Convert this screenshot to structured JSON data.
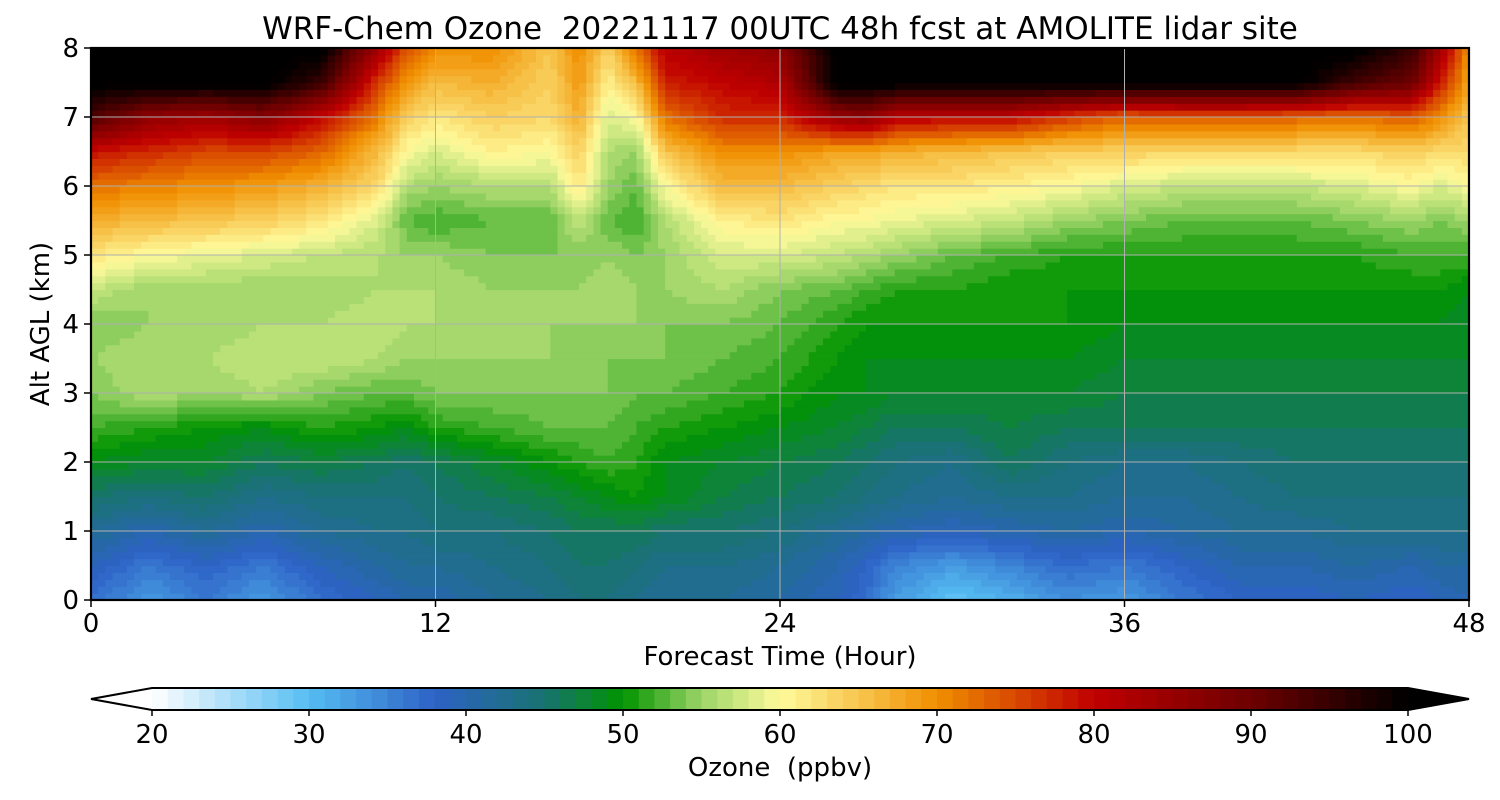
{
  "chart_data": {
    "type": "heatmap",
    "title": "WRF-Chem Ozone  20221117 00UTC 48h fcst at AMOLITE lidar site",
    "xlabel": "Forecast Time (Hour)",
    "ylabel": "Alt AGL (km)",
    "xlim": [
      0,
      48
    ],
    "ylim": [
      0,
      8
    ],
    "xticks": [
      0,
      12,
      24,
      36,
      48
    ],
    "yticks": [
      0,
      1,
      2,
      3,
      4,
      5,
      6,
      7,
      8
    ],
    "grid": true,
    "x": [
      0,
      2,
      4,
      6,
      8,
      10,
      11,
      12,
      14,
      16,
      17,
      18,
      19,
      20,
      22,
      24,
      26,
      27,
      28,
      30,
      32,
      34,
      36,
      38,
      40,
      42,
      44,
      46,
      47,
      48
    ],
    "y": [
      0,
      0.5,
      1,
      1.5,
      2,
      2.5,
      3,
      3.5,
      4,
      4.5,
      5,
      5.5,
      6,
      6.5,
      7,
      7.5,
      8
    ],
    "z": [
      [
        37,
        33,
        36,
        33,
        37,
        39,
        40,
        40,
        42,
        43,
        44,
        44,
        43,
        42,
        42,
        41,
        39,
        37,
        33,
        29,
        31,
        34,
        33,
        36,
        38,
        38,
        39,
        38,
        39,
        40
      ],
      [
        39,
        36,
        38,
        36,
        39,
        41,
        42,
        42,
        43,
        44,
        45,
        45,
        44,
        43,
        43,
        42,
        40,
        38,
        35,
        33,
        35,
        37,
        36,
        38,
        40,
        40,
        41,
        40,
        41,
        41
      ],
      [
        42,
        40,
        42,
        40,
        42,
        43,
        43,
        44,
        44,
        45,
        46,
        46,
        46,
        45,
        45,
        44,
        42,
        41,
        40,
        39,
        40,
        41,
        40,
        41,
        42,
        42,
        43,
        43,
        43,
        43
      ],
      [
        45,
        44,
        45,
        43,
        44,
        44,
        44,
        45,
        46,
        47,
        48,
        49,
        50,
        49,
        47,
        46,
        45,
        44,
        43,
        42,
        43,
        43,
        42,
        42,
        43,
        44,
        44,
        44,
        44,
        44
      ],
      [
        49,
        48,
        48,
        46,
        47,
        46,
        45,
        46,
        48,
        50,
        51,
        52,
        51,
        49,
        48,
        47,
        46,
        45,
        44,
        43,
        46,
        44,
        43,
        43,
        44,
        45,
        45,
        45,
        45,
        45
      ],
      [
        52,
        51,
        50,
        49,
        51,
        50,
        49,
        51,
        52,
        53,
        53,
        53,
        52,
        51,
        50,
        49,
        48,
        47,
        46,
        46,
        47,
        46,
        46,
        46,
        46,
        46,
        46,
        46,
        46,
        46
      ],
      [
        54,
        56,
        55,
        56,
        54,
        53,
        53,
        54,
        54,
        54,
        54,
        54,
        53,
        53,
        52,
        51,
        49,
        49,
        48,
        48,
        48,
        48,
        47,
        47,
        47,
        47,
        47,
        47,
        47,
        47
      ],
      [
        55,
        56,
        56,
        57,
        57,
        56,
        55,
        55,
        55,
        55,
        54,
        54,
        54,
        54,
        53,
        52,
        50,
        49,
        49,
        49,
        49,
        49,
        48,
        48,
        48,
        48,
        48,
        48,
        48,
        48
      ],
      [
        54,
        55,
        55,
        56,
        56,
        57,
        56,
        56,
        55,
        55,
        55,
        55,
        55,
        54,
        54,
        53,
        51,
        50,
        50,
        50,
        50,
        50,
        49,
        49,
        49,
        49,
        49,
        49,
        49,
        48
      ],
      [
        57,
        55,
        55,
        55,
        55,
        56,
        56,
        56,
        55,
        55,
        55,
        56,
        55,
        55,
        56,
        54,
        53,
        52,
        51,
        51,
        50,
        50,
        50,
        50,
        50,
        50,
        50,
        50,
        50,
        49
      ],
      [
        62,
        60,
        59,
        58,
        57,
        56,
        55,
        55,
        54,
        54,
        54,
        55,
        54,
        55,
        58,
        58,
        57,
        56,
        55,
        53,
        52,
        51,
        51,
        51,
        51,
        51,
        51,
        52,
        52,
        52
      ],
      [
        67,
        66,
        65,
        64,
        62,
        58,
        53,
        52,
        53,
        53,
        57,
        53,
        52,
        56,
        61,
        62,
        60,
        60,
        59,
        58,
        57,
        55,
        54,
        53,
        53,
        53,
        54,
        55,
        54,
        55
      ],
      [
        72,
        71,
        70,
        69,
        67,
        63,
        56,
        55,
        56,
        56,
        62,
        55,
        53,
        60,
        66,
        66,
        64,
        63,
        62,
        62,
        61,
        60,
        58,
        57,
        57,
        57,
        58,
        60,
        58,
        60
      ],
      [
        79,
        77,
        75,
        75,
        73,
        66,
        60,
        58,
        61,
        60,
        64,
        56,
        55,
        65,
        70,
        70,
        68,
        68,
        67,
        66,
        65,
        64,
        64,
        63,
        63,
        63,
        63,
        64,
        63,
        63
      ],
      [
        93,
        86,
        84,
        87,
        80,
        71,
        64,
        62,
        64,
        63,
        67,
        58,
        60,
        72,
        77,
        77,
        85,
        86,
        81,
        80,
        80,
        76,
        73,
        74,
        74,
        73,
        72,
        74,
        70,
        65
      ],
      [
        101,
        101,
        101,
        101,
        95,
        76,
        69,
        66,
        67,
        64,
        69,
        61,
        66,
        78,
        80,
        82,
        101,
        101,
        101,
        101,
        101,
        101,
        101,
        101,
        101,
        101,
        94,
        90,
        78,
        68
      ],
      [
        101,
        101,
        101,
        101,
        101,
        84,
        74,
        70,
        70,
        65,
        70,
        64,
        72,
        81,
        84,
        86,
        101,
        101,
        101,
        101,
        101,
        101,
        101,
        101,
        101,
        101,
        101,
        95,
        84,
        70
      ]
    ],
    "colorbar": {
      "label": "Ozone  (ppbv)",
      "min": 20,
      "max": 100,
      "step": 1,
      "ticks": [
        20,
        30,
        40,
        50,
        60,
        70,
        80,
        90,
        100
      ],
      "extend": "both",
      "stops": [
        {
          "v": 20,
          "c": "#ffffff"
        },
        {
          "v": 30,
          "c": "#55bdf2"
        },
        {
          "v": 38,
          "c": "#2e62c6"
        },
        {
          "v": 45,
          "c": "#187370"
        },
        {
          "v": 50,
          "c": "#019400"
        },
        {
          "v": 55,
          "c": "#9cd468"
        },
        {
          "v": 60,
          "c": "#fffb9c"
        },
        {
          "v": 70,
          "c": "#f08f00"
        },
        {
          "v": 80,
          "c": "#c00000"
        },
        {
          "v": 90,
          "c": "#6d0000"
        },
        {
          "v": 100,
          "c": "#000000"
        }
      ]
    }
  }
}
